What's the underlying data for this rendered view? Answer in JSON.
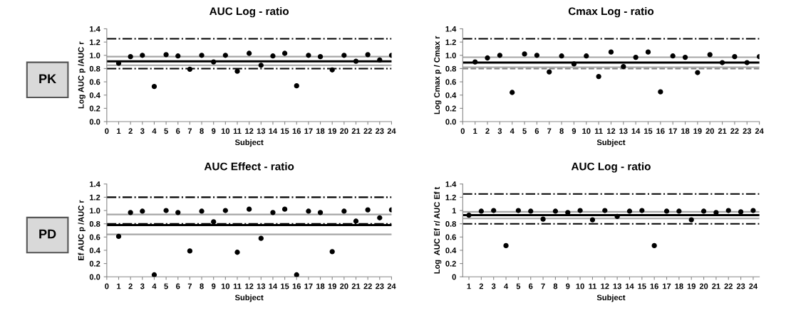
{
  "chart_data": [
    {
      "type": "scatter",
      "title": "AUC Log - ratio",
      "xlabel": "Subject",
      "ylabel": "Log AUC p /AUC r",
      "annotations": [
        "PK"
      ],
      "marker": "circle",
      "grid": false,
      "legend": false,
      "x": [
        1,
        2,
        3,
        4,
        5,
        6,
        7,
        8,
        9,
        10,
        11,
        12,
        13,
        14,
        15,
        16,
        17,
        18,
        19,
        20,
        21,
        22,
        23,
        24
      ],
      "series": [
        {
          "color": "#000000",
          "values": [
            0.88,
            0.98,
            1.0,
            0.53,
            1.01,
            0.99,
            0.79,
            1.0,
            0.9,
            1.0,
            0.76,
            1.03,
            0.85,
            0.99,
            1.03,
            0.54,
            1.0,
            0.98,
            0.78,
            1.0,
            0.91,
            1.01,
            0.93,
            1.0
          ]
        }
      ],
      "xlim": [
        0,
        24
      ],
      "xticks": [
        0,
        1,
        2,
        3,
        4,
        5,
        6,
        7,
        8,
        9,
        10,
        11,
        12,
        13,
        14,
        15,
        16,
        17,
        18,
        19,
        20,
        21,
        22,
        23,
        24
      ],
      "ylim": [
        0,
        1.4
      ],
      "yticks": [
        {
          "value": 0,
          "label": "0.0"
        },
        {
          "value": 0.2,
          "label": "0.2"
        },
        {
          "value": 0.4,
          "label": "0.4"
        },
        {
          "value": 0.6,
          "label": "0.6"
        },
        {
          "value": 0.8,
          "label": "0.8"
        },
        {
          "value": 1.0,
          "label": "1.0"
        },
        {
          "value": 1.2,
          "label": "1.2"
        },
        {
          "value": 1.4,
          "label": "1.4"
        }
      ],
      "ref_lines": [
        {
          "axis": "y",
          "value": 1.25,
          "color": "#000000",
          "line_style": "dashdot"
        },
        {
          "axis": "y",
          "value": 0.8,
          "color": "#000000",
          "line_style": "dashdot"
        },
        {
          "axis": "y",
          "value": 0.98,
          "color": "#a6a6a6",
          "line_style": "solid"
        },
        {
          "axis": "y",
          "value": 0.85,
          "color": "#a6a6a6",
          "line_style": "solid"
        },
        {
          "axis": "y",
          "value": 0.91,
          "color": "#000000",
          "line_style": "solid"
        }
      ]
    },
    {
      "type": "scatter",
      "title": "Cmax Log - ratio",
      "xlabel": "Subject",
      "ylabel": "Log Cmax p / Cmax r",
      "marker": "circle",
      "grid": false,
      "legend": false,
      "x": [
        1,
        2,
        3,
        4,
        5,
        6,
        7,
        8,
        9,
        10,
        11,
        12,
        13,
        14,
        15,
        16,
        17,
        18,
        19,
        20,
        21,
        22,
        23,
        24
      ],
      "series": [
        {
          "color": "#000000",
          "values": [
            0.9,
            0.96,
            1.0,
            0.44,
            1.02,
            1.0,
            0.75,
            0.99,
            0.87,
            0.99,
            0.68,
            1.05,
            0.83,
            0.97,
            1.05,
            0.45,
            0.99,
            0.97,
            0.74,
            1.01,
            0.89,
            0.98,
            0.89,
            0.98
          ]
        }
      ],
      "xlim": [
        0,
        24
      ],
      "xticks": [
        0,
        1,
        2,
        3,
        4,
        5,
        6,
        7,
        8,
        9,
        10,
        11,
        12,
        13,
        14,
        15,
        16,
        17,
        18,
        19,
        20,
        21,
        22,
        23,
        24
      ],
      "ylim": [
        0,
        1.4
      ],
      "yticks": [
        {
          "value": 0,
          "label": "0.0"
        },
        {
          "value": 0.2,
          "label": "0.2"
        },
        {
          "value": 0.4,
          "label": "0.4"
        },
        {
          "value": 0.6,
          "label": "0.6"
        },
        {
          "value": 0.8,
          "label": "0.8"
        },
        {
          "value": 1.0,
          "label": "1.0"
        },
        {
          "value": 1.2,
          "label": "1.2"
        },
        {
          "value": 1.4,
          "label": "1.4"
        }
      ],
      "ref_lines": [
        {
          "axis": "y",
          "value": 1.25,
          "color": "#000000",
          "line_style": "dashdot"
        },
        {
          "axis": "y",
          "value": 0.8,
          "color": "#808080",
          "line_style": "dashed"
        },
        {
          "axis": "y",
          "value": 0.97,
          "color": "#a6a6a6",
          "line_style": "solid"
        },
        {
          "axis": "y",
          "value": 0.82,
          "color": "#a6a6a6",
          "line_style": "solid"
        },
        {
          "axis": "y",
          "value": 0.89,
          "color": "#000000",
          "line_style": "solid"
        }
      ]
    },
    {
      "type": "scatter",
      "title": "AUC Effect - ratio",
      "xlabel": "Subject",
      "ylabel": "Ef AUC p /AUC r",
      "annotations": [
        "PD"
      ],
      "marker": "circle",
      "grid": false,
      "legend": false,
      "x": [
        1,
        2,
        3,
        4,
        5,
        6,
        7,
        8,
        9,
        10,
        11,
        12,
        13,
        14,
        15,
        16,
        17,
        18,
        19,
        20,
        21,
        22,
        23,
        24
      ],
      "series": [
        {
          "color": "#000000",
          "values": [
            0.61,
            0.97,
            0.99,
            0.03,
            1.0,
            0.97,
            0.39,
            0.99,
            0.83,
            1.0,
            0.37,
            1.02,
            0.58,
            0.97,
            1.02,
            0.03,
            0.99,
            0.97,
            0.38,
            0.99,
            0.84,
            1.01,
            0.89,
            1.01
          ]
        }
      ],
      "xlim": [
        0,
        24
      ],
      "xticks": [
        0,
        1,
        2,
        3,
        4,
        5,
        6,
        7,
        8,
        9,
        10,
        11,
        12,
        13,
        14,
        15,
        16,
        17,
        18,
        19,
        20,
        21,
        22,
        23,
        24
      ],
      "ylim": [
        0,
        1.4
      ],
      "yticks": [
        {
          "value": 0,
          "label": "0.0"
        },
        {
          "value": 0.2,
          "label": "0.2"
        },
        {
          "value": 0.4,
          "label": "0.4"
        },
        {
          "value": 0.6,
          "label": "0.6"
        },
        {
          "value": 0.8,
          "label": "0.8"
        },
        {
          "value": 1.0,
          "label": "1.0"
        },
        {
          "value": 1.2,
          "label": "1.2"
        },
        {
          "value": 1.4,
          "label": "1.4"
        }
      ],
      "ref_lines": [
        {
          "axis": "y",
          "value": 1.2,
          "color": "#000000",
          "line_style": "dashdot"
        },
        {
          "axis": "y",
          "value": 0.8,
          "color": "#000000",
          "line_style": "dashdot"
        },
        {
          "axis": "y",
          "value": 0.94,
          "color": "#a6a6a6",
          "line_style": "solid"
        },
        {
          "axis": "y",
          "value": 0.64,
          "color": "#a6a6a6",
          "line_style": "solid"
        },
        {
          "axis": "y",
          "value": 0.78,
          "color": "#000000",
          "line_style": "solid"
        }
      ]
    },
    {
      "type": "scatter",
      "title": "AUC Log - ratio",
      "xlabel": "Subject",
      "ylabel": "Log  AUC Ef r/ AUC Ef t",
      "marker": "circle",
      "grid": false,
      "legend": false,
      "x": [
        1,
        2,
        3,
        4,
        5,
        6,
        7,
        8,
        9,
        10,
        11,
        12,
        13,
        14,
        15,
        16,
        17,
        18,
        19,
        20,
        21,
        22,
        23,
        24
      ],
      "series": [
        {
          "color": "#000000",
          "values": [
            0.93,
            0.99,
            1.0,
            0.47,
            1.0,
            0.99,
            0.87,
            0.99,
            0.97,
            1.0,
            0.86,
            1.0,
            0.91,
            0.99,
            1.0,
            0.47,
            0.99,
            0.99,
            0.86,
            0.99,
            0.97,
            1.0,
            0.98,
            1.0
          ]
        }
      ],
      "xlim": [
        0.5,
        24.5
      ],
      "xticks": [
        1,
        2,
        3,
        4,
        5,
        6,
        7,
        8,
        9,
        10,
        11,
        12,
        13,
        14,
        15,
        16,
        17,
        18,
        19,
        20,
        21,
        22,
        23,
        24
      ],
      "ylim": [
        0,
        1.4
      ],
      "yticks": [
        0,
        0.2,
        0.4,
        0.6,
        0.8,
        1,
        1.2,
        1.4
      ],
      "ref_lines": [
        {
          "axis": "y",
          "value": 1.25,
          "color": "#000000",
          "line_style": "dashdot"
        },
        {
          "axis": "y",
          "value": 0.8,
          "color": "#000000",
          "line_style": "dashdot"
        },
        {
          "axis": "y",
          "value": 0.98,
          "color": "#a6a6a6",
          "line_style": "solid"
        },
        {
          "axis": "y",
          "value": 0.88,
          "color": "#a6a6a6",
          "line_style": "solid"
        },
        {
          "axis": "y",
          "value": 0.93,
          "color": "#000000",
          "line_style": "solid"
        }
      ]
    }
  ]
}
